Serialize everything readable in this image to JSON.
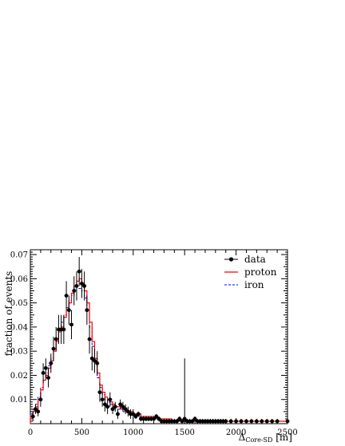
{
  "chart_data": {
    "type": "histogram",
    "ylabel": "fraction of events",
    "xlabel": {
      "symbol": "Δ",
      "subscript": "Core-SD",
      "unit": "[m]"
    },
    "xlim": [
      0,
      2500
    ],
    "ylim": [
      0,
      0.072
    ],
    "xticks": [
      "0",
      "500",
      "1000",
      "1500",
      "2000",
      "2500"
    ],
    "yticks": [
      "0.01",
      "0.02",
      "0.03",
      "0.04",
      "0.05",
      "0.06",
      "0.07"
    ],
    "bin_width": 25,
    "legend_position": "top-right",
    "legend": [
      {
        "label": "data",
        "style": "marker-line",
        "color": "#000000"
      },
      {
        "label": "proton",
        "style": "solid",
        "color": "#ff0000"
      },
      {
        "label": "iron",
        "style": "dashed",
        "color": "#0000ff"
      }
    ],
    "series": [
      {
        "name": "data",
        "style": "points",
        "color": "#000000",
        "x": [
          25,
          50,
          75,
          100,
          125,
          150,
          175,
          200,
          225,
          250,
          275,
          300,
          325,
          350,
          375,
          400,
          425,
          450,
          475,
          500,
          525,
          550,
          575,
          600,
          625,
          650,
          675,
          700,
          725,
          750,
          775,
          800,
          825,
          850,
          875,
          900,
          925,
          950,
          975,
          1000,
          1025,
          1050,
          1075,
          1100,
          1125,
          1150,
          1175,
          1200,
          1225,
          1250,
          1275,
          1300,
          1325,
          1350,
          1375,
          1400,
          1425,
          1450,
          1475,
          1500,
          1525,
          1550,
          1575,
          1600,
          1625,
          1650,
          1675,
          1700,
          1725,
          1750,
          1775,
          1800,
          1825,
          1850,
          1875,
          1900,
          1950,
          2000,
          2050,
          2100,
          2150,
          2200,
          2250,
          2300,
          2350,
          2400,
          2500
        ],
        "y": [
          0.003,
          0.006,
          0.005,
          0.01,
          0.021,
          0.023,
          0.019,
          0.025,
          0.031,
          0.035,
          0.039,
          0.039,
          0.039,
          0.053,
          0.047,
          0.041,
          0.055,
          0.057,
          0.063,
          0.058,
          0.057,
          0.047,
          0.035,
          0.027,
          0.026,
          0.025,
          0.013,
          0.01,
          0.008,
          0.007,
          0.01,
          0.006,
          0.007,
          0.004,
          0.008,
          0.007,
          0.006,
          0.005,
          0.004,
          0.004,
          0.003,
          0.004,
          0.002,
          0.002,
          0.002,
          0.002,
          0.002,
          0.002,
          0.003,
          0.002,
          0.001,
          0.001,
          0.001,
          0.001,
          0.001,
          0.001,
          0.001,
          0.002,
          0.001,
          0.002,
          0.001,
          0.001,
          0.001,
          0.002,
          0.001,
          0.001,
          0.001,
          0.001,
          0.001,
          0.001,
          0.001,
          0.001,
          0.001,
          0.001,
          0.001,
          0.001,
          0.001,
          0.001,
          0.001,
          0.001,
          0.001,
          0.001,
          0.001,
          0.001,
          0.001,
          0.001,
          0.001
        ],
        "yerr": [
          0.002,
          0.002,
          0.002,
          0.003,
          0.004,
          0.004,
          0.004,
          0.004,
          0.005,
          0.005,
          0.006,
          0.006,
          0.006,
          0.006,
          0.006,
          0.006,
          0.006,
          0.006,
          0.006,
          0.006,
          0.006,
          0.006,
          0.006,
          0.005,
          0.005,
          0.005,
          0.004,
          0.003,
          0.003,
          0.003,
          0.003,
          0.002,
          0.002,
          0.002,
          0.002,
          0.002,
          0.002,
          0.002,
          0.002,
          0.002,
          0.001,
          0.001,
          0.001,
          0.001,
          0.001,
          0.001,
          0.001,
          0.001,
          0.001,
          0.001,
          0.001,
          0.001,
          0.001,
          0.001,
          0.001,
          0.001,
          0.001,
          0.001,
          0.001,
          0.025,
          0.001,
          0.001,
          0.001,
          0.001,
          0.001,
          0.001,
          0.001,
          0.001,
          0.001,
          0.001,
          0.001,
          0.001,
          0.001,
          0.001,
          0.001,
          0.001,
          0.001,
          0.001,
          0.001,
          0.001,
          0.001,
          0.001,
          0.001,
          0.001,
          0.001,
          0.001,
          0.001
        ]
      },
      {
        "name": "proton",
        "style": "step",
        "color": "#ff0000",
        "values": [
          0.003,
          0.005,
          0.007,
          0.01,
          0.014,
          0.018,
          0.02,
          0.023,
          0.026,
          0.03,
          0.034,
          0.038,
          0.04,
          0.044,
          0.047,
          0.05,
          0.054,
          0.057,
          0.059,
          0.06,
          0.058,
          0.055,
          0.05,
          0.042,
          0.034,
          0.027,
          0.021,
          0.016,
          0.013,
          0.011,
          0.01,
          0.009,
          0.008,
          0.007,
          0.007,
          0.006,
          0.006,
          0.005,
          0.005,
          0.005,
          0.004,
          0.004,
          0.004,
          0.003,
          0.003,
          0.003,
          0.003,
          0.003,
          0.002,
          0.002,
          0.002,
          0.002,
          0.002,
          0.002,
          0.002,
          0.001,
          0.001,
          0.001,
          0.001,
          0.001,
          0.001,
          0.001,
          0.001,
          0.001,
          0.001,
          0.001,
          0.001,
          0.001,
          0.001,
          0.001,
          0.001,
          0.001,
          0.001,
          0.001,
          0.001,
          0.001,
          0.001,
          0.001,
          0.001,
          0.001,
          0.001,
          0.001,
          0.001,
          0.001,
          0.001,
          0.001,
          0.001,
          0.001,
          0.001,
          0.001,
          0.001,
          0.001,
          0.001,
          0.001,
          0.001,
          0.001,
          0.001,
          0.001,
          0.001,
          0.001
        ]
      },
      {
        "name": "iron",
        "style": "step-dashed",
        "color": "#0000ff",
        "values": [
          0.004,
          0.006,
          0.008,
          0.011,
          0.015,
          0.018,
          0.021,
          0.024,
          0.027,
          0.031,
          0.035,
          0.038,
          0.042,
          0.045,
          0.048,
          0.051,
          0.053,
          0.055,
          0.056,
          0.056,
          0.055,
          0.052,
          0.047,
          0.04,
          0.032,
          0.025,
          0.019,
          0.015,
          0.012,
          0.01,
          0.009,
          0.008,
          0.008,
          0.007,
          0.006,
          0.006,
          0.005,
          0.005,
          0.005,
          0.004,
          0.004,
          0.004,
          0.003,
          0.003,
          0.003,
          0.003,
          0.002,
          0.002,
          0.002,
          0.002,
          0.002,
          0.002,
          0.002,
          0.002,
          0.001,
          0.001,
          0.001,
          0.001,
          0.001,
          0.001,
          0.001,
          0.001,
          0.001,
          0.001,
          0.001,
          0.001,
          0.001,
          0.001,
          0.001,
          0.001,
          0.001,
          0.001,
          0.001,
          0.001,
          0.001,
          0.001,
          0.001,
          0.001,
          0.001,
          0.001,
          0.001,
          0.001,
          0.001,
          0.001,
          0.001,
          0.001,
          0.001,
          0.001,
          0.001,
          0.001,
          0.001,
          0.001,
          0.001,
          0.001,
          0.001,
          0.001,
          0.001,
          0.001,
          0.001,
          0.001
        ]
      }
    ]
  }
}
